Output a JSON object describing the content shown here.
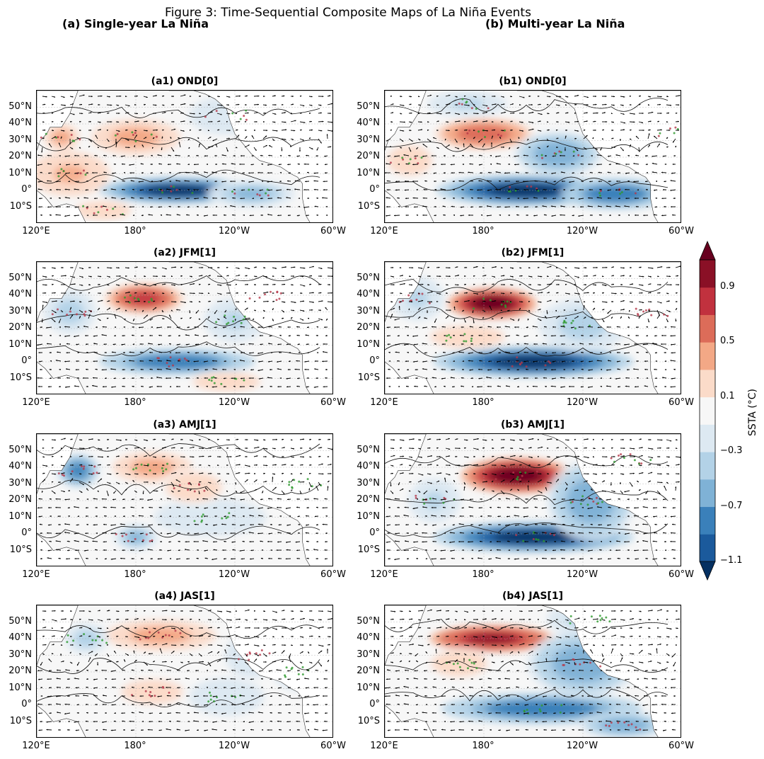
{
  "chart_data": {
    "type": "heatmap",
    "title": "Figure 3: Time-Sequential Composite Maps of La Niña Events",
    "columns": [
      {
        "id": "a",
        "title": "(a) Single-year La Niña"
      },
      {
        "id": "b",
        "title": "(b) Multi-year La Niña"
      }
    ],
    "panels": [
      {
        "id": "a1",
        "title": "(a1) OND[0]",
        "column": "a",
        "row": 1,
        "features": [
          {
            "lon": 205,
            "lat": 0,
            "value": -1.3,
            "sx": 35,
            "sy": 6
          },
          {
            "lon": 250,
            "lat": -2,
            "value": -0.6,
            "sx": 20,
            "sy": 6
          },
          {
            "lon": 180,
            "lat": 32,
            "value": 0.45,
            "sx": 20,
            "sy": 8
          },
          {
            "lon": 140,
            "lat": 10,
            "value": 0.35,
            "sx": 18,
            "sy": 10
          },
          {
            "lon": 160,
            "lat": -12,
            "value": 0.3,
            "sx": 15,
            "sy": 5
          },
          {
            "lon": 135,
            "lat": 32,
            "value": 0.45,
            "sx": 8,
            "sy": 6
          },
          {
            "lon": 235,
            "lat": 45,
            "value": -0.3,
            "sx": 20,
            "sy": 10
          }
        ]
      },
      {
        "id": "b1",
        "title": "(b1) OND[0]",
        "column": "b",
        "row": 1,
        "features": [
          {
            "lon": 205,
            "lat": 0,
            "value": -1.5,
            "sx": 40,
            "sy": 7
          },
          {
            "lon": 260,
            "lat": -2,
            "value": -1.0,
            "sx": 25,
            "sy": 7
          },
          {
            "lon": 180,
            "lat": 34,
            "value": 0.7,
            "sx": 22,
            "sy": 7
          },
          {
            "lon": 135,
            "lat": 18,
            "value": 0.3,
            "sx": 12,
            "sy": 8
          },
          {
            "lon": 225,
            "lat": 22,
            "value": -0.7,
            "sx": 20,
            "sy": 10
          },
          {
            "lon": 170,
            "lat": 52,
            "value": -0.4,
            "sx": 18,
            "sy": 6
          },
          {
            "lon": 295,
            "lat": 35,
            "value": 0.4,
            "sx": 12,
            "sy": 8
          }
        ]
      },
      {
        "id": "a2",
        "title": "(a2) JFM[1]",
        "column": "a",
        "row": 2,
        "features": [
          {
            "lon": 205,
            "lat": 0,
            "value": -1.0,
            "sx": 35,
            "sy": 6
          },
          {
            "lon": 185,
            "lat": 38,
            "value": 0.95,
            "sx": 18,
            "sy": 7
          },
          {
            "lon": 140,
            "lat": 30,
            "value": -0.5,
            "sx": 12,
            "sy": 10
          },
          {
            "lon": 240,
            "lat": 25,
            "value": -0.4,
            "sx": 14,
            "sy": 10
          },
          {
            "lon": 260,
            "lat": 40,
            "value": -0.25,
            "sx": 15,
            "sy": 10
          },
          {
            "lon": 235,
            "lat": -12,
            "value": 0.25,
            "sx": 18,
            "sy": 5
          }
        ]
      },
      {
        "id": "b2",
        "title": "(b2) JFM[1]",
        "column": "b",
        "row": 2,
        "features": [
          {
            "lon": 210,
            "lat": 0,
            "value": -1.5,
            "sx": 45,
            "sy": 7
          },
          {
            "lon": 185,
            "lat": 35,
            "value": 1.3,
            "sx": 20,
            "sy": 7
          },
          {
            "lon": 140,
            "lat": 38,
            "value": -0.4,
            "sx": 12,
            "sy": 10
          },
          {
            "lon": 240,
            "lat": 22,
            "value": -0.5,
            "sx": 20,
            "sy": 12
          },
          {
            "lon": 285,
            "lat": 30,
            "value": 0.6,
            "sx": 12,
            "sy": 7
          },
          {
            "lon": 170,
            "lat": 15,
            "value": 0.25,
            "sx": 20,
            "sy": 6
          }
        ]
      },
      {
        "id": "a3",
        "title": "(a3) AMJ[1]",
        "column": "a",
        "row": 3,
        "features": [
          {
            "lon": 145,
            "lat": 38,
            "value": -0.9,
            "sx": 10,
            "sy": 8
          },
          {
            "lon": 190,
            "lat": 40,
            "value": 0.5,
            "sx": 18,
            "sy": 7
          },
          {
            "lon": 180,
            "lat": -2,
            "value": -0.6,
            "sx": 10,
            "sy": 6
          },
          {
            "lon": 225,
            "lat": 10,
            "value": -0.3,
            "sx": 30,
            "sy": 10
          },
          {
            "lon": 215,
            "lat": 28,
            "value": 0.25,
            "sx": 15,
            "sy": 8
          },
          {
            "lon": 280,
            "lat": 30,
            "value": 0.2,
            "sx": 15,
            "sy": 8
          }
        ]
      },
      {
        "id": "b3",
        "title": "(b3) AMJ[1]",
        "column": "b",
        "row": 3,
        "features": [
          {
            "lon": 200,
            "lat": 35,
            "value": 1.3,
            "sx": 25,
            "sy": 8
          },
          {
            "lon": 210,
            "lat": -2,
            "value": -1.3,
            "sx": 45,
            "sy": 7
          },
          {
            "lon": 150,
            "lat": 20,
            "value": -0.4,
            "sx": 12,
            "sy": 10
          },
          {
            "lon": 245,
            "lat": 20,
            "value": -0.8,
            "sx": 20,
            "sy": 18
          },
          {
            "lon": 270,
            "lat": 45,
            "value": -0.4,
            "sx": 15,
            "sy": 10
          }
        ]
      },
      {
        "id": "a4",
        "title": "(a4) JAS[1]",
        "column": "a",
        "row": 4,
        "features": [
          {
            "lon": 195,
            "lat": 42,
            "value": 0.45,
            "sx": 25,
            "sy": 7
          },
          {
            "lon": 150,
            "lat": 40,
            "value": -0.5,
            "sx": 10,
            "sy": 7
          },
          {
            "lon": 190,
            "lat": 8,
            "value": 0.2,
            "sx": 20,
            "sy": 8
          },
          {
            "lon": 235,
            "lat": 5,
            "value": -0.3,
            "sx": 20,
            "sy": 10
          },
          {
            "lon": 250,
            "lat": 30,
            "value": -0.3,
            "sx": 14,
            "sy": 12
          },
          {
            "lon": 280,
            "lat": 20,
            "value": -0.3,
            "sx": 15,
            "sy": 10
          }
        ]
      },
      {
        "id": "b4",
        "title": "(b4) JAS[1]",
        "column": "b",
        "row": 4,
        "features": [
          {
            "lon": 185,
            "lat": 40,
            "value": 1.2,
            "sx": 28,
            "sy": 6
          },
          {
            "lon": 215,
            "lat": -2,
            "value": -1.0,
            "sx": 45,
            "sy": 7
          },
          {
            "lon": 240,
            "lat": 25,
            "value": -0.8,
            "sx": 25,
            "sy": 15
          },
          {
            "lon": 165,
            "lat": 25,
            "value": 0.3,
            "sx": 15,
            "sy": 7
          },
          {
            "lon": 265,
            "lat": -12,
            "value": -0.8,
            "sx": 20,
            "sy": 6
          },
          {
            "lon": 245,
            "lat": 52,
            "value": -0.5,
            "sx": 20,
            "sy": 8
          }
        ]
      }
    ],
    "xticks": [
      {
        "lon": 120,
        "label": "120°E"
      },
      {
        "lon": 180,
        "label": "180°"
      },
      {
        "lon": 240,
        "label": "120°W"
      },
      {
        "lon": 300,
        "label": "60°W"
      }
    ],
    "yticks": [
      {
        "lat": 50,
        "label": "50°N"
      },
      {
        "lat": 40,
        "label": "40°N"
      },
      {
        "lat": 30,
        "label": "30°N"
      },
      {
        "lat": 20,
        "label": "20°N"
      },
      {
        "lat": 10,
        "label": "10°N"
      },
      {
        "lat": 0,
        "label": "0°"
      },
      {
        "lat": -10,
        "label": "10°S"
      }
    ],
    "xlim": [
      120,
      300
    ],
    "ylim": [
      -20,
      60
    ],
    "colorbar": {
      "label": "SSTA (°C)",
      "levels": [
        -1.1,
        -0.9,
        -0.7,
        -0.5,
        -0.3,
        -0.1,
        0.1,
        0.3,
        0.5,
        0.7,
        0.9,
        1.1
      ],
      "colors": [
        "#053061",
        "#1b5a9c",
        "#3a80ba",
        "#7fb2d6",
        "#b3d2e7",
        "#dde9f2",
        "#f7f7f7",
        "#fbdbc9",
        "#f3a886",
        "#dc6c59",
        "#c1313e",
        "#8a1026",
        "#67001f"
      ],
      "tick_labels": [
        {
          "value": 0.9,
          "label": "0.9"
        },
        {
          "value": 0.5,
          "label": "0.5"
        },
        {
          "value": 0.1,
          "label": "0.1"
        },
        {
          "value": -0.3,
          "label": "−0.3"
        },
        {
          "value": -0.7,
          "label": "−0.7"
        },
        {
          "value": -1.1,
          "label": "−1.1"
        }
      ]
    }
  }
}
